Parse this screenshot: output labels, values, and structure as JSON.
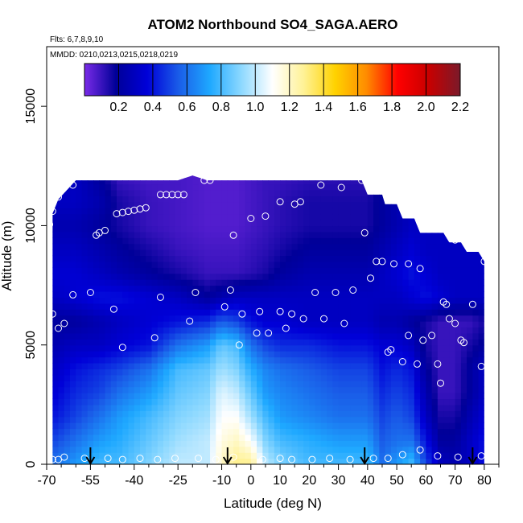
{
  "chart_data": {
    "type": "heatmap",
    "title": "ATOM2 Northbound SO4_SAGA.AERO",
    "flights_label": "Flts: 6,7,8,9,10",
    "dates_label": "MMDD: 0210,0213,0215,0218,0219",
    "xlabel": "Latitude (deg N)",
    "ylabel": "Altitude (m)",
    "xlim": [
      -70,
      85
    ],
    "ylim": [
      0,
      17500
    ],
    "x_ticks": [
      "-70",
      "-55",
      "-40",
      "-25",
      "-10",
      "0",
      "10",
      "20",
      "30",
      "40",
      "50",
      "60",
      "70",
      "80"
    ],
    "x_tick_values": [
      -70,
      -55,
      -40,
      -25,
      -10,
      0,
      10,
      20,
      30,
      40,
      50,
      60,
      70,
      80
    ],
    "x_minor_ticks": [
      -65,
      -60,
      -50,
      -45,
      -35,
      -30,
      -20,
      -15,
      -5,
      5,
      15,
      25,
      35,
      45,
      55,
      65,
      75,
      85
    ],
    "y_ticks": [
      "0",
      "5000",
      "10000",
      "15000"
    ],
    "y_tick_values": [
      0,
      5000,
      10000,
      15000
    ],
    "colorbar": {
      "min": 0,
      "max": 2.2,
      "tick_labels": [
        "0.2",
        "0.4",
        "0.6",
        "0.8",
        "1.0",
        "1.2",
        "1.4",
        "1.6",
        "1.8",
        "2.0",
        "2.2"
      ],
      "tick_values": [
        0.2,
        0.4,
        0.6,
        0.8,
        1.0,
        1.2,
        1.4,
        1.6,
        1.8,
        2.0,
        2.2
      ],
      "colors": [
        "#7a2be8",
        "#000098",
        "#0000d8",
        "#1a5ce8",
        "#1ea8ff",
        "#8cd8ff",
        "#ffffff",
        "#fff296",
        "#ffd200",
        "#ff8c00",
        "#ff0000",
        "#c80000",
        "#7a1a2a"
      ]
    },
    "profile_latitudes": [
      -55,
      -8,
      39,
      76
    ],
    "field": {
      "lat_nodes": [
        -68,
        -60,
        -52,
        -45,
        -35,
        -25,
        -15,
        -10,
        -5,
        0,
        5,
        10,
        20,
        30,
        40,
        45,
        50,
        55,
        60,
        65,
        70,
        75,
        80
      ],
      "alt_nodes": [
        0,
        1000,
        2000,
        3000,
        4000,
        5000,
        6000,
        7000,
        8000,
        9000,
        10000,
        11000,
        12000
      ],
      "values": [
        [
          0.6,
          0.7,
          0.8,
          0.8,
          0.9,
          1.0,
          1.0,
          1.2,
          1.3,
          1.3,
          1.0,
          0.9,
          0.8,
          0.8,
          0.8,
          0.6,
          0.7,
          0.8,
          0.5,
          0.3,
          0.25,
          0.3,
          0.4
        ],
        [
          0.5,
          0.6,
          0.7,
          0.75,
          0.85,
          0.95,
          1.0,
          1.15,
          1.2,
          1.1,
          0.9,
          0.8,
          0.75,
          0.7,
          0.7,
          0.55,
          0.6,
          0.6,
          0.4,
          0.2,
          0.2,
          0.3,
          0.4
        ],
        [
          0.4,
          0.5,
          0.6,
          0.7,
          0.8,
          0.9,
          0.95,
          1.1,
          1.1,
          0.95,
          0.8,
          0.7,
          0.65,
          0.6,
          0.6,
          0.5,
          0.55,
          0.5,
          0.3,
          0.15,
          0.15,
          0.25,
          0.35
        ],
        [
          0.35,
          0.45,
          0.5,
          0.6,
          0.7,
          0.85,
          0.9,
          1.05,
          1.0,
          0.85,
          0.7,
          0.65,
          0.6,
          0.55,
          0.55,
          0.45,
          0.5,
          0.45,
          0.25,
          0.1,
          0.1,
          0.2,
          0.3
        ],
        [
          0.3,
          0.4,
          0.45,
          0.5,
          0.6,
          0.8,
          0.85,
          0.95,
          0.9,
          0.75,
          0.65,
          0.6,
          0.55,
          0.5,
          0.5,
          0.4,
          0.45,
          0.4,
          0.2,
          0.1,
          0.1,
          0.2,
          0.3
        ],
        [
          0.25,
          0.3,
          0.3,
          0.35,
          0.4,
          0.6,
          0.7,
          0.85,
          0.8,
          0.6,
          0.5,
          0.45,
          0.45,
          0.4,
          0.4,
          0.35,
          0.35,
          0.3,
          0.15,
          0.1,
          0.1,
          0.15,
          0.2
        ],
        [
          0.2,
          0.2,
          0.25,
          0.3,
          0.35,
          0.4,
          0.45,
          0.55,
          0.5,
          0.4,
          0.35,
          0.35,
          0.3,
          0.3,
          0.3,
          0.25,
          0.25,
          0.2,
          0.15,
          0.1,
          0.1,
          0.1,
          0.15
        ],
        [
          0.3,
          0.35,
          0.4,
          0.4,
          0.35,
          0.3,
          0.2,
          0.25,
          0.3,
          0.3,
          0.3,
          0.3,
          0.3,
          0.3,
          0.3,
          0.3,
          0.3,
          0.35,
          0.4,
          0.35,
          0.3,
          0.3,
          0.3
        ],
        [
          0.35,
          0.35,
          0.3,
          0.25,
          0.2,
          0.15,
          0.1,
          0.1,
          0.1,
          0.12,
          0.15,
          0.2,
          0.25,
          0.25,
          0.25,
          0.3,
          0.35,
          0.4,
          0.35,
          0.3,
          0.3,
          0.3,
          0.3
        ],
        [
          0.3,
          0.3,
          0.25,
          0.2,
          0.15,
          0.1,
          0.08,
          0.08,
          0.08,
          0.1,
          0.12,
          0.15,
          0.2,
          0.2,
          0.2,
          0.25,
          0.3,
          0.35,
          0.3,
          0.3,
          0.3,
          0.3,
          0.3
        ],
        [
          0.25,
          0.25,
          0.2,
          0.15,
          0.1,
          0.08,
          0.06,
          0.06,
          0.06,
          0.08,
          0.1,
          0.12,
          0.15,
          0.15,
          0.15,
          0.2,
          0.25,
          0.3,
          0.3,
          0.3,
          0.3,
          0.3,
          0.3
        ],
        [
          0.3,
          0.3,
          0.25,
          0.15,
          0.1,
          0.08,
          0.06,
          0.06,
          0.06,
          0.08,
          0.1,
          0.12,
          0.15,
          0.15,
          0.15,
          0.2,
          0.25,
          0.3,
          0.3,
          0.3,
          0.3,
          0.3,
          0.3
        ],
        [
          0.3,
          0.3,
          0.2,
          0.1,
          0.08,
          0.08,
          0.06,
          0.06,
          0.06,
          0.08,
          0.1,
          0.1,
          0.12,
          0.12,
          0.12,
          0.2,
          0.25,
          0.3,
          0.3,
          0.3,
          0.3,
          0.3,
          0.3
        ]
      ],
      "coverage_top": [
        [
          -68,
          10500
        ],
        [
          -66,
          11100
        ],
        [
          -63,
          11500
        ],
        [
          -60,
          11900
        ],
        [
          -50,
          11900
        ],
        [
          -40,
          11900
        ],
        [
          -30,
          11900
        ],
        [
          -25,
          11900
        ],
        [
          -20,
          12100
        ],
        [
          -15,
          11900
        ],
        [
          0,
          11900
        ],
        [
          20,
          11900
        ],
        [
          38,
          11900
        ],
        [
          40,
          11300
        ],
        [
          45,
          11300
        ],
        [
          46,
          10900
        ],
        [
          50,
          10900
        ],
        [
          52,
          10300
        ],
        [
          56,
          10300
        ],
        [
          58,
          9700
        ],
        [
          66,
          9700
        ],
        [
          68,
          9300
        ],
        [
          72,
          9300
        ],
        [
          74,
          8900
        ],
        [
          78,
          8900
        ],
        [
          80,
          8500
        ]
      ]
    },
    "observations": [
      {
        "lat": -69,
        "alt": 10050
      },
      {
        "lat": -68,
        "alt": 10600
      },
      {
        "lat": -66,
        "alt": 11200
      },
      {
        "lat": -65,
        "alt": 11800
      },
      {
        "lat": -62,
        "alt": 11900
      },
      {
        "lat": -61,
        "alt": 11700
      },
      {
        "lat": -53,
        "alt": 9600
      },
      {
        "lat": -52,
        "alt": 9700
      },
      {
        "lat": -50,
        "alt": 9800
      },
      {
        "lat": -46,
        "alt": 10500
      },
      {
        "lat": -44,
        "alt": 10550
      },
      {
        "lat": -42,
        "alt": 10600
      },
      {
        "lat": -40,
        "alt": 10650
      },
      {
        "lat": -38,
        "alt": 10700
      },
      {
        "lat": -36,
        "alt": 10750
      },
      {
        "lat": -31,
        "alt": 11300
      },
      {
        "lat": -29,
        "alt": 11300
      },
      {
        "lat": -27,
        "alt": 11300
      },
      {
        "lat": -25,
        "alt": 11300
      },
      {
        "lat": -23,
        "alt": 11300
      },
      {
        "lat": -16,
        "alt": 11900
      },
      {
        "lat": -14,
        "alt": 11900
      },
      {
        "lat": -6,
        "alt": 9600
      },
      {
        "lat": 0,
        "alt": 10300
      },
      {
        "lat": 5,
        "alt": 10400
      },
      {
        "lat": 10,
        "alt": 11000
      },
      {
        "lat": 15,
        "alt": 10900
      },
      {
        "lat": 17,
        "alt": 11000
      },
      {
        "lat": 24,
        "alt": 11700
      },
      {
        "lat": 31,
        "alt": 11600
      },
      {
        "lat": 38,
        "alt": 11900
      },
      {
        "lat": 39,
        "alt": 9700
      },
      {
        "lat": 41,
        "alt": 7800
      },
      {
        "lat": 43,
        "alt": 8500
      },
      {
        "lat": 45,
        "alt": 8500
      },
      {
        "lat": 49,
        "alt": 8400
      },
      {
        "lat": 54,
        "alt": 8400
      },
      {
        "lat": 58,
        "alt": 8200
      },
      {
        "lat": 70,
        "alt": 9400
      },
      {
        "lat": 75,
        "alt": 9300
      },
      {
        "lat": 80,
        "alt": 8500
      },
      {
        "lat": -68,
        "alt": 6300
      },
      {
        "lat": -66,
        "alt": 5700
      },
      {
        "lat": -64,
        "alt": 5900
      },
      {
        "lat": -61,
        "alt": 7100
      },
      {
        "lat": -55,
        "alt": 7200
      },
      {
        "lat": -47,
        "alt": 6500
      },
      {
        "lat": -44,
        "alt": 4900
      },
      {
        "lat": -33,
        "alt": 5300
      },
      {
        "lat": -31,
        "alt": 7000
      },
      {
        "lat": -21,
        "alt": 6000
      },
      {
        "lat": -19,
        "alt": 7200
      },
      {
        "lat": -9,
        "alt": 6600
      },
      {
        "lat": -7,
        "alt": 7300
      },
      {
        "lat": -4,
        "alt": 5000
      },
      {
        "lat": -3,
        "alt": 6300
      },
      {
        "lat": 2,
        "alt": 5500
      },
      {
        "lat": 3,
        "alt": 6400
      },
      {
        "lat": 6,
        "alt": 5500
      },
      {
        "lat": 10,
        "alt": 6400
      },
      {
        "lat": 12,
        "alt": 5700
      },
      {
        "lat": 14,
        "alt": 6300
      },
      {
        "lat": 18,
        "alt": 6100
      },
      {
        "lat": 22,
        "alt": 7200
      },
      {
        "lat": 25,
        "alt": 6100
      },
      {
        "lat": 29,
        "alt": 7200
      },
      {
        "lat": 32,
        "alt": 5900
      },
      {
        "lat": 35,
        "alt": 7300
      },
      {
        "lat": 47,
        "alt": 4700
      },
      {
        "lat": 48,
        "alt": 4800
      },
      {
        "lat": 52,
        "alt": 4300
      },
      {
        "lat": 54,
        "alt": 5400
      },
      {
        "lat": 57,
        "alt": 4200
      },
      {
        "lat": 59,
        "alt": 5200
      },
      {
        "lat": 62,
        "alt": 5400
      },
      {
        "lat": 64,
        "alt": 4200
      },
      {
        "lat": 65,
        "alt": 3400
      },
      {
        "lat": 66,
        "alt": 6800
      },
      {
        "lat": 67,
        "alt": 6700
      },
      {
        "lat": 68,
        "alt": 6100
      },
      {
        "lat": 70,
        "alt": 5900
      },
      {
        "lat": 72,
        "alt": 5200
      },
      {
        "lat": 73,
        "alt": 5100
      },
      {
        "lat": 76,
        "alt": 6700
      },
      {
        "lat": 79,
        "alt": 4100
      },
      {
        "lat": -68,
        "alt": 200
      },
      {
        "lat": -66,
        "alt": 200
      },
      {
        "lat": -64,
        "alt": 300
      },
      {
        "lat": -57,
        "alt": 250
      },
      {
        "lat": -49,
        "alt": 250
      },
      {
        "lat": -44,
        "alt": 200
      },
      {
        "lat": -38,
        "alt": 250
      },
      {
        "lat": -32,
        "alt": 200
      },
      {
        "lat": -26,
        "alt": 250
      },
      {
        "lat": -18,
        "alt": 250
      },
      {
        "lat": -12,
        "alt": 200
      },
      {
        "lat": -6,
        "alt": 300
      },
      {
        "lat": 4,
        "alt": 200
      },
      {
        "lat": 10,
        "alt": 250
      },
      {
        "lat": 14,
        "alt": 200
      },
      {
        "lat": 21,
        "alt": 200
      },
      {
        "lat": 27,
        "alt": 250
      },
      {
        "lat": 34,
        "alt": 200
      },
      {
        "lat": 42,
        "alt": 250
      },
      {
        "lat": 47,
        "alt": 250
      },
      {
        "lat": 52,
        "alt": 400
      },
      {
        "lat": 58,
        "alt": 600
      },
      {
        "lat": 64,
        "alt": 350
      },
      {
        "lat": 71,
        "alt": 300
      },
      {
        "lat": 79,
        "alt": 350
      }
    ]
  }
}
